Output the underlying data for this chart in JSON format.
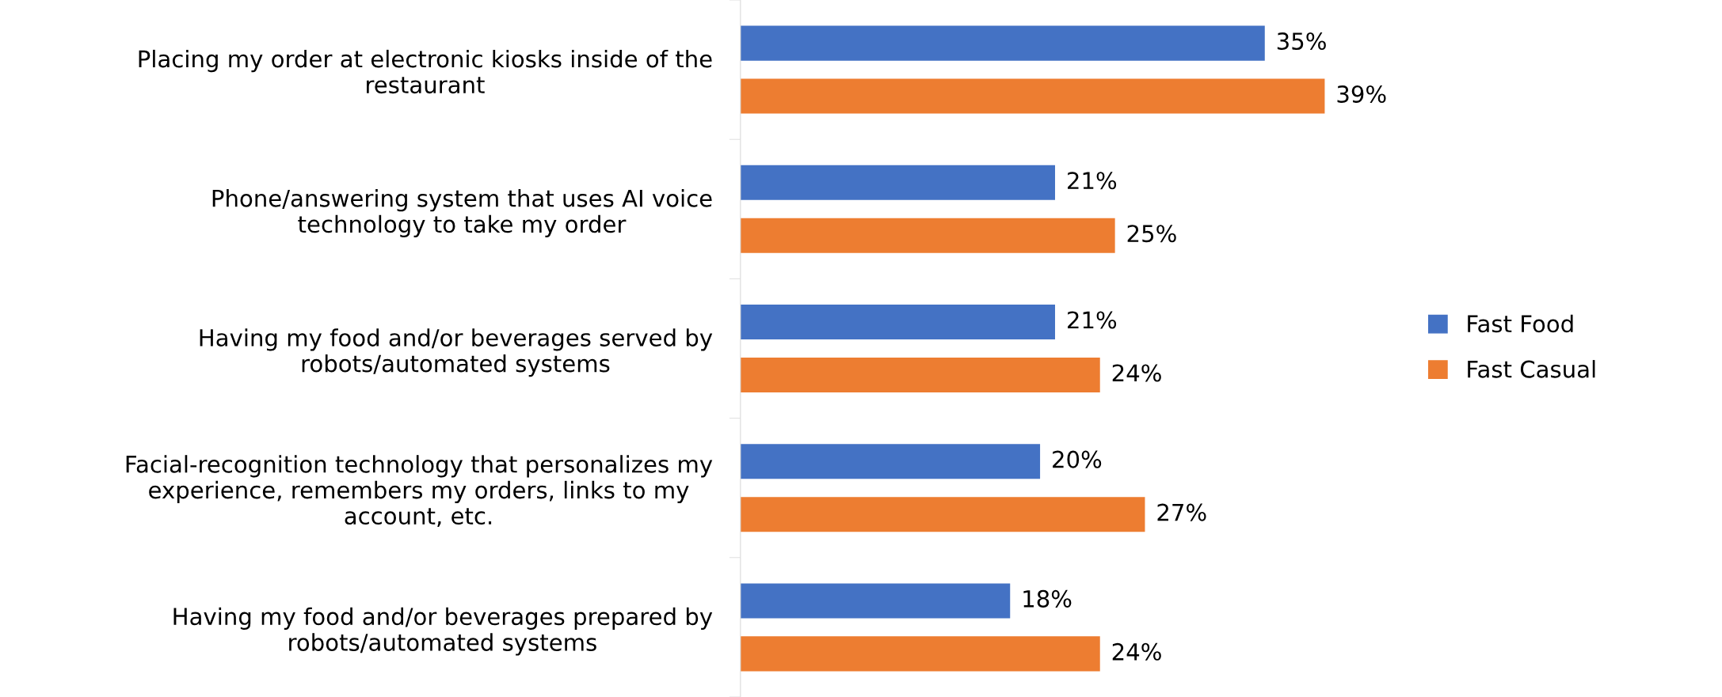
{
  "chart_data": {
    "type": "bar",
    "orientation": "horizontal",
    "categories": [
      "Placing my order at electronic kiosks inside of the\nrestaurant",
      "Phone/answering system that uses AI voice\ntechnology to take my order",
      "Having my food and/or beverages served by\nrobots/automated systems",
      "Facial-recognition technology that personalizes my\nexperience, remembers my orders, links to my\naccount, etc.",
      "Having my food and/or beverages prepared by\nrobots/automated systems"
    ],
    "series": [
      {
        "name": "Fast Food",
        "color": "#4472c4",
        "values": [
          35,
          21,
          21,
          20,
          18
        ],
        "value_labels": [
          "35%",
          "21%",
          "21%",
          "20%",
          "18%"
        ]
      },
      {
        "name": "Fast Casual",
        "color": "#ed7d31",
        "values": [
          39,
          25,
          24,
          27,
          24
        ],
        "value_labels": [
          "39%",
          "25%",
          "24%",
          "27%",
          "24%"
        ]
      }
    ],
    "legend": "right"
  }
}
